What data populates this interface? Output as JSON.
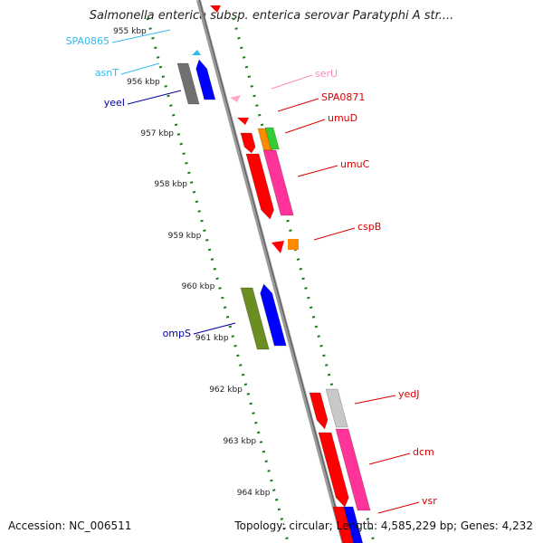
{
  "title": "Salmonella enterica subsp. enterica serovar Paratyphi A str....",
  "footer": {
    "accession": "Accession: NC_006511",
    "summary": "Topology: circular; Length: 4,585,229 bp; Genes: 4,232"
  },
  "colors": {
    "backbone": "#9a9a9a",
    "tick": "#1a7a1a",
    "red": "#ff0000",
    "pink": "#ff3399",
    "blue": "#0000ff",
    "gray": "#707070",
    "olive": "#6b8e23",
    "orange": "#ff8c00",
    "green": "#33cc33",
    "lightgray": "#c8c8c8",
    "cyan": "#33bbee",
    "lightpink": "#ffaacc"
  },
  "kbp_labels": [
    "955 kbp",
    "956 kbp",
    "957 kbp",
    "958 kbp",
    "959 kbp",
    "960 kbp",
    "961 kbp",
    "962 kbp",
    "963 kbp",
    "964 kbp"
  ],
  "gene_labels": [
    {
      "name": "SPA0865",
      "color": "#33bbee"
    },
    {
      "name": "asnT",
      "color": "#33bbee"
    },
    {
      "name": "yeeI",
      "color": "#0000aa"
    },
    {
      "name": "ompS",
      "color": "#0000aa"
    },
    {
      "name": "serU",
      "color": "#ff88bb"
    },
    {
      "name": "SPA0871",
      "color": "#dd0000"
    },
    {
      "name": "umuD",
      "color": "#dd0000"
    },
    {
      "name": "umuC",
      "color": "#dd0000"
    },
    {
      "name": "cspB",
      "color": "#dd0000"
    },
    {
      "name": "yedJ",
      "color": "#dd0000"
    },
    {
      "name": "dcm",
      "color": "#dd0000"
    },
    {
      "name": "vsr",
      "color": "#dd0000"
    }
  ]
}
